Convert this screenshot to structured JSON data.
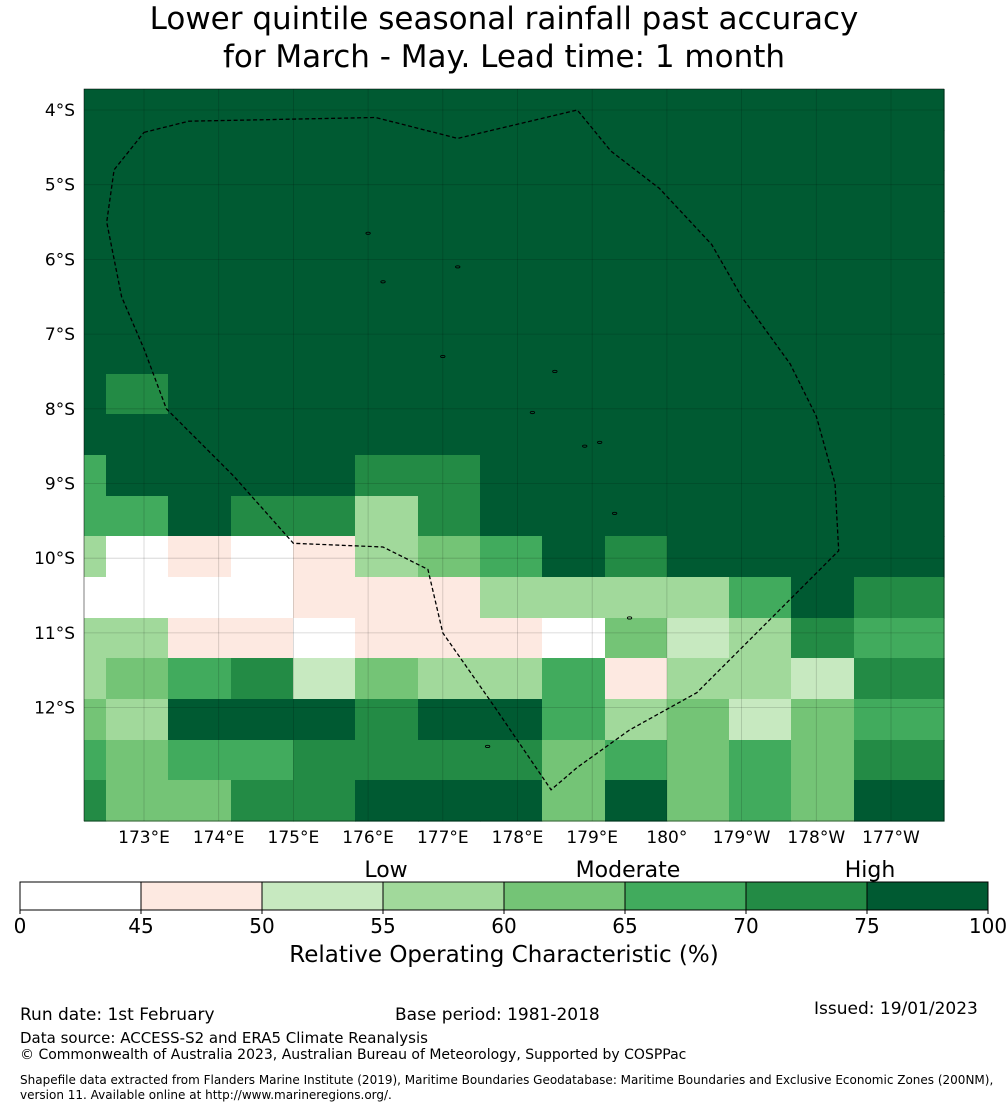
{
  "title": {
    "line1": "Lower quintile seasonal rainfall past accuracy",
    "line2": "for March - May. Lead time: 1 month"
  },
  "map": {
    "lat_labels": [
      "4°S",
      "5°S",
      "6°S",
      "7°S",
      "8°S",
      "9°S",
      "10°S",
      "11°S",
      "12°S"
    ],
    "lon_labels": [
      "173°E",
      "174°E",
      "175°E",
      "176°E",
      "177°E",
      "178°E",
      "179°E",
      "180°",
      "179°W",
      "178°W",
      "177°W"
    ],
    "grid_values": [
      [
        75,
        75,
        75,
        75,
        75,
        75,
        75,
        75,
        75,
        75,
        75,
        75,
        75,
        75
      ],
      [
        75,
        75,
        75,
        75,
        75,
        75,
        75,
        75,
        75,
        75,
        75,
        75,
        75,
        75
      ],
      [
        75,
        75,
        75,
        75,
        75,
        75,
        75,
        75,
        75,
        75,
        75,
        75,
        75,
        75
      ],
      [
        75,
        75,
        75,
        75,
        75,
        75,
        75,
        75,
        75,
        75,
        75,
        75,
        75,
        75
      ],
      [
        75,
        75,
        75,
        75,
        75,
        75,
        75,
        75,
        75,
        75,
        75,
        75,
        75,
        75
      ],
      [
        75,
        75,
        75,
        75,
        75,
        75,
        75,
        75,
        75,
        75,
        75,
        75,
        75,
        75
      ],
      [
        75,
        75,
        75,
        75,
        75,
        75,
        75,
        75,
        75,
        75,
        75,
        75,
        75,
        75
      ],
      [
        75,
        70,
        75,
        75,
        75,
        75,
        75,
        75,
        75,
        75,
        75,
        75,
        75,
        75
      ],
      [
        75,
        75,
        75,
        75,
        75,
        75,
        75,
        75,
        75,
        75,
        75,
        75,
        75,
        75
      ],
      [
        65,
        75,
        75,
        75,
        75,
        70,
        70,
        75,
        75,
        75,
        75,
        75,
        75,
        75
      ],
      [
        65,
        65,
        75,
        70,
        70,
        55,
        70,
        75,
        75,
        75,
        75,
        75,
        75,
        75
      ],
      [
        55,
        40,
        45,
        40,
        45,
        55,
        60,
        65,
        75,
        70,
        75,
        75,
        75,
        75
      ],
      [
        40,
        40,
        40,
        40,
        45,
        45,
        45,
        55,
        55,
        55,
        55,
        65,
        75,
        70
      ],
      [
        55,
        55,
        45,
        45,
        40,
        45,
        45,
        45,
        40,
        60,
        50,
        55,
        70,
        65
      ],
      [
        55,
        60,
        65,
        70,
        50,
        60,
        55,
        55,
        65,
        45,
        55,
        55,
        50,
        70
      ],
      [
        60,
        55,
        75,
        75,
        75,
        70,
        75,
        75,
        65,
        55,
        60,
        50,
        60,
        65
      ],
      [
        65,
        60,
        65,
        65,
        70,
        70,
        70,
        70,
        60,
        65,
        60,
        65,
        60,
        70
      ],
      [
        70,
        60,
        60,
        70,
        70,
        75,
        75,
        75,
        60,
        75,
        60,
        65,
        60,
        75
      ]
    ],
    "eez_boundary": [
      [
        173.0,
        -4.3
      ],
      [
        173.6,
        -4.15
      ],
      [
        176.1,
        -4.1
      ],
      [
        177.2,
        -4.38
      ],
      [
        178.8,
        -4.0
      ],
      [
        179.25,
        -4.55
      ],
      [
        179.9,
        -5.05
      ],
      [
        180.6,
        -5.8
      ],
      [
        181.0,
        -6.5
      ],
      [
        181.65,
        -7.4
      ],
      [
        182.0,
        -8.1
      ],
      [
        182.25,
        -9.0
      ],
      [
        182.3,
        -9.9
      ],
      [
        181.4,
        -10.8
      ],
      [
        180.4,
        -11.8
      ],
      [
        179.5,
        -12.3
      ],
      [
        178.8,
        -12.8
      ],
      [
        178.45,
        -13.1
      ],
      [
        177.7,
        -12.0
      ],
      [
        177.0,
        -11.0
      ],
      [
        176.8,
        -10.15
      ],
      [
        176.2,
        -9.85
      ],
      [
        175.0,
        -9.8
      ],
      [
        174.2,
        -8.9
      ],
      [
        173.3,
        -8.0
      ],
      [
        173.0,
        -7.2
      ],
      [
        172.7,
        -6.5
      ],
      [
        172.5,
        -5.5
      ],
      [
        172.6,
        -4.8
      ],
      [
        173.0,
        -4.3
      ]
    ],
    "islands": [
      [
        176.0,
        -5.65
      ],
      [
        176.2,
        -6.3
      ],
      [
        177.2,
        -6.1
      ],
      [
        177.0,
        -7.3
      ],
      [
        178.2,
        -8.05
      ],
      [
        178.5,
        -7.5
      ],
      [
        178.9,
        -8.5
      ],
      [
        179.1,
        -8.45
      ],
      [
        179.3,
        -9.4
      ],
      [
        179.5,
        -10.8
      ],
      [
        177.6,
        -12.52
      ]
    ]
  },
  "colorbar": {
    "bounds": [
      0,
      45,
      50,
      55,
      60,
      65,
      70,
      75,
      100
    ],
    "colors": [
      "#ffffff",
      "#fde9e1",
      "#c7e9c0",
      "#a1d99b",
      "#74c476",
      "#41ab5d",
      "#238b45",
      "#005a32"
    ],
    "tick_labels": [
      "0",
      "45",
      "50",
      "55",
      "60",
      "65",
      "70",
      "75",
      "100"
    ],
    "categories": [
      {
        "label": "Low",
        "value": 55
      },
      {
        "label": "Moderate",
        "value": 65
      },
      {
        "label": "High",
        "value": 75
      }
    ],
    "axis_title": "Relative Operating Characteristic (%)"
  },
  "footer": {
    "run_date": "Run date: 1st February",
    "base_period": "Base period: 1981-2018",
    "issued": "Issued: 19/01/2023",
    "data_source": "Data source: ACCESS-S2 and ERA5 Climate Reanalysis",
    "copyright": "© Commonwealth of Australia 2023, Australian Bureau of Meteorology, Supported by COSPPac",
    "shapefile_line1": "Shapefile data extracted from Flanders Marine Institute (2019), Maritime Boundaries Geodatabase: Maritime Boundaries and Exclusive Economic Zones (200NM),",
    "shapefile_line2": "version 11. Available online at http://www.marineregions.org/."
  }
}
